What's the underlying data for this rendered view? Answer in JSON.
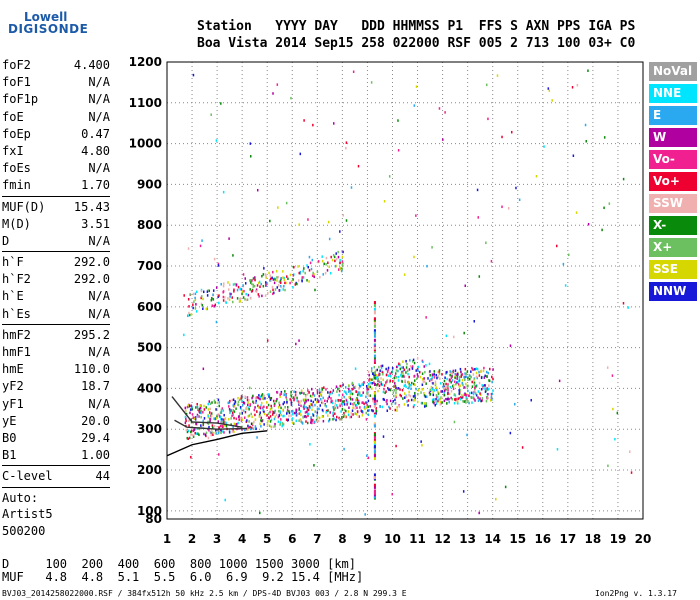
{
  "logo": {
    "line1": "Lowell",
    "line2": "DIGISONDE"
  },
  "header": {
    "line1": "Station   YYYY DAY   DDD HHMMSS P1  FFS S AXN PPS IGA PS",
    "line2": "Boa Vista 2014 Sep15 258 022000 RSF 005 2 713 100 03+ C0"
  },
  "params_group1": [
    {
      "label": "foF2",
      "value": "4.400"
    },
    {
      "label": "foF1",
      "value": "N/A"
    },
    {
      "label": "foF1p",
      "value": "N/A"
    },
    {
      "label": "foE",
      "value": "N/A"
    },
    {
      "label": "foEp",
      "value": "0.47"
    },
    {
      "label": "fxI",
      "value": "4.80"
    },
    {
      "label": "foEs",
      "value": "N/A"
    },
    {
      "label": "fmin",
      "value": "1.70"
    }
  ],
  "params_group2": [
    {
      "label": "MUF(D)",
      "value": "15.43"
    },
    {
      "label": "M(D)",
      "value": "3.51"
    },
    {
      "label": "D",
      "value": "N/A"
    }
  ],
  "params_group3": [
    {
      "label": "h`F",
      "value": "292.0"
    },
    {
      "label": "h`F2",
      "value": "292.0"
    },
    {
      "label": "h`E",
      "value": "N/A"
    },
    {
      "label": "h`Es",
      "value": "N/A"
    }
  ],
  "params_group4": [
    {
      "label": "hmF2",
      "value": "295.2"
    },
    {
      "label": "hmF1",
      "value": "N/A"
    },
    {
      "label": "hmE",
      "value": "110.0"
    },
    {
      "label": "yF2",
      "value": "18.7"
    },
    {
      "label": "yF1",
      "value": "N/A"
    },
    {
      "label": "yE",
      "value": "20.0"
    },
    {
      "label": "B0",
      "value": "29.4"
    },
    {
      "label": "B1",
      "value": "1.00"
    }
  ],
  "clevel": {
    "label": "C-level",
    "value": "44"
  },
  "auto": {
    "line1": "Auto:",
    "line2": "Artist5",
    "line3": "500200"
  },
  "legend": [
    {
      "label": "NoVal",
      "color": "#a0a0a0"
    },
    {
      "label": "NNE",
      "color": "#00e5ff"
    },
    {
      "label": "E",
      "color": "#2aa8f0"
    },
    {
      "label": "W",
      "color": "#b000a0"
    },
    {
      "label": "Vo-",
      "color": "#f02090"
    },
    {
      "label": "Vo+",
      "color": "#ee0030"
    },
    {
      "label": "SSW",
      "color": "#f0b0b0"
    },
    {
      "label": "X-",
      "color": "#0a8a0a"
    },
    {
      "label": "X+",
      "color": "#6cc060"
    },
    {
      "label": "SSE",
      "color": "#d6d600"
    },
    {
      "label": "NNW",
      "color": "#1818d8"
    }
  ],
  "footer": {
    "d_row": "D     100  200  400  600  800 1000 1500 3000 [km]",
    "muf_row": "MUF   4.8  4.8  5.1  5.5  6.0  6.9  9.2 15.4 [MHz]",
    "file_info": "BVJ03_2014258022000.RSF / 384fx512h 50 kHz 2.5 km / DPS-4D BVJ03 003 / 2.8 N 299.3 E",
    "version": "Ion2Png v. 1.3.17"
  },
  "chart_data": {
    "type": "scatter",
    "xlim": [
      1,
      20
    ],
    "ylim": [
      80,
      1200
    ],
    "x_ticks": [
      1,
      2,
      3,
      4,
      5,
      6,
      7,
      8,
      9,
      10,
      11,
      12,
      13,
      14,
      15,
      16,
      17,
      18,
      19,
      20
    ],
    "y_ticks": [
      80,
      100,
      200,
      300,
      400,
      500,
      600,
      700,
      800,
      900,
      1000,
      1100,
      1200
    ],
    "grid": true,
    "x_unit": "MHz",
    "y_unit": "km",
    "legend_position": "right",
    "traces": [
      {
        "name": "F2 ordinary trace",
        "points": [
          [
            1.7,
            292
          ],
          [
            2.2,
            296
          ],
          [
            3.0,
            305
          ],
          [
            4.0,
            315
          ],
          [
            5.0,
            322
          ],
          [
            6.0,
            328
          ],
          [
            7.0,
            334
          ],
          [
            8.0,
            343
          ],
          [
            9.0,
            352
          ],
          [
            10.0,
            362
          ],
          [
            11.0,
            372
          ],
          [
            12.0,
            378
          ],
          [
            13.0,
            382
          ],
          [
            14.0,
            388
          ]
        ]
      },
      {
        "name": "multiple-hop echo",
        "points": [
          [
            1.8,
            605
          ],
          [
            2.5,
            618
          ],
          [
            3.5,
            635
          ],
          [
            4.5,
            648
          ],
          [
            5.5,
            665
          ],
          [
            6.5,
            685
          ],
          [
            7.5,
            705
          ],
          [
            8.0,
            710
          ]
        ]
      },
      {
        "name": "vertical interference band",
        "points": [
          [
            9.3,
            120
          ],
          [
            9.3,
            620
          ]
        ]
      }
    ],
    "profile_lines": [
      [
        [
          1.0,
          235
        ],
        [
          2.0,
          262
        ],
        [
          3.0,
          275
        ],
        [
          4.0,
          290
        ],
        [
          5.0,
          296
        ]
      ],
      [
        [
          1.2,
          380
        ],
        [
          2.0,
          318
        ],
        [
          3.0,
          315
        ],
        [
          4.0,
          305
        ]
      ],
      [
        [
          1.3,
          322
        ],
        [
          1.8,
          305
        ],
        [
          3.0,
          300
        ],
        [
          4.2,
          302
        ]
      ]
    ]
  }
}
